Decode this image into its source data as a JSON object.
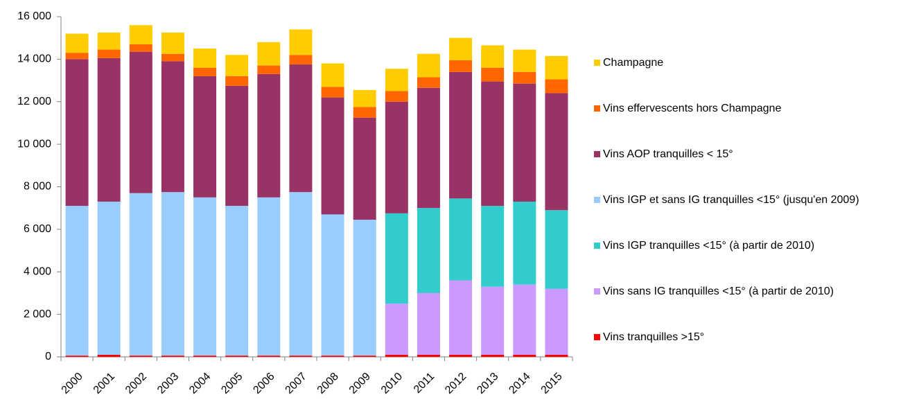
{
  "chart_data": {
    "type": "stacked-bar",
    "categories": [
      "2000",
      "2001",
      "2002",
      "2003",
      "2004",
      "2005",
      "2006",
      "2007",
      "2008",
      "2009",
      "2010",
      "2011",
      "2012",
      "2013",
      "2014",
      "2015"
    ],
    "series": [
      {
        "name": "Vins tranquilles >15°",
        "color": "#ff0000",
        "values": [
          60,
          100,
          60,
          60,
          60,
          60,
          60,
          60,
          60,
          60,
          100,
          100,
          100,
          100,
          100,
          100
        ]
      },
      {
        "name": "Vins sans IG tranquilles <15° (à partir de 2010)",
        "color": "#cc99ff",
        "values": [
          null,
          null,
          null,
          null,
          null,
          null,
          null,
          null,
          null,
          null,
          2400,
          2900,
          3500,
          3200,
          3300,
          3100
        ]
      },
      {
        "name": "Vins IGP tranquilles <15° (à partir de 2010)",
        "color": "#33cccc",
        "values": [
          null,
          null,
          null,
          null,
          null,
          null,
          null,
          null,
          null,
          null,
          4250,
          4000,
          3850,
          3800,
          3900,
          3700
        ]
      },
      {
        "name": "Vins IGP et sans IG tranquilles <15° (jusqu'en 2009)",
        "color": "#99ccff",
        "values": [
          7040,
          7200,
          7640,
          7690,
          7440,
          7040,
          7440,
          7690,
          6640,
          6390,
          null,
          null,
          null,
          null,
          null,
          null
        ]
      },
      {
        "name": "Vins AOP tranquilles < 15°",
        "color": "#993366",
        "values": [
          6900,
          6750,
          6650,
          6150,
          5700,
          5650,
          5800,
          6000,
          5500,
          4800,
          5250,
          5650,
          5950,
          5850,
          5550,
          5500
        ]
      },
      {
        "name": "Vins effervescents hors Champagne",
        "color": "#ff6600",
        "values": [
          300,
          400,
          350,
          350,
          400,
          450,
          400,
          450,
          500,
          500,
          500,
          500,
          550,
          650,
          550,
          650
        ]
      },
      {
        "name": "Champagne",
        "color": "#ffcc00",
        "values": [
          900,
          800,
          900,
          1000,
          900,
          1000,
          1100,
          1200,
          1100,
          800,
          1050,
          1100,
          1050,
          1050,
          1050,
          1100
        ]
      }
    ],
    "ylim": [
      0,
      16000
    ],
    "yticks": [
      0,
      {
        "value": 2000,
        "label": "2 000"
      },
      {
        "value": 4000,
        "label": "4 000"
      },
      {
        "value": 6000,
        "label": "6 000"
      },
      {
        "value": 8000,
        "label": "8 000"
      },
      {
        "value": 10000,
        "label": "10 000"
      },
      {
        "value": 12000,
        "label": "12 000"
      },
      {
        "value": 14000,
        "label": "14 000"
      },
      {
        "value": 16000,
        "label": "16 000"
      }
    ],
    "grid": false,
    "legend": "right"
  }
}
